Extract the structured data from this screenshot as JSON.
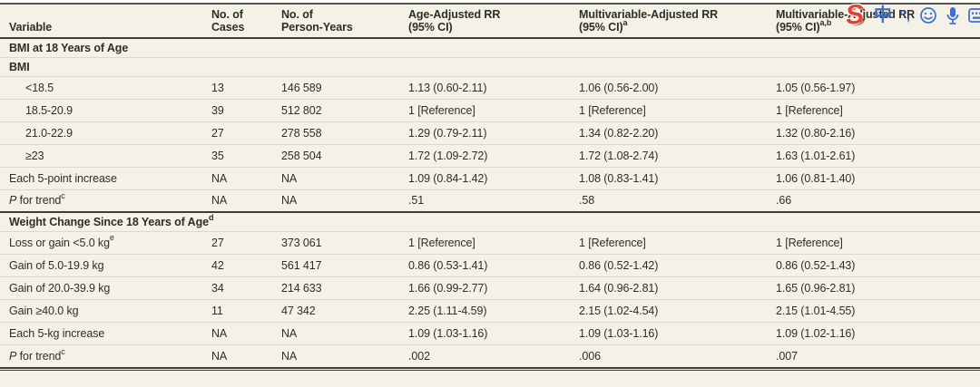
{
  "page": {
    "background": "#f4f2e7",
    "rule_color": "#3d3c36",
    "text_color": "#2e2d29"
  },
  "table": {
    "header": {
      "cols": [
        {
          "line1": "",
          "line2": "Variable",
          "sup": ""
        },
        {
          "line1": "No. of",
          "line2": "Cases",
          "sup": ""
        },
        {
          "line1": "No. of",
          "line2": "Person-Years",
          "sup": ""
        },
        {
          "line1": "Age-Adjusted RR",
          "line2": "(95% CI)",
          "sup": ""
        },
        {
          "line1": "Multivariable-Adjusted RR",
          "line2": "(95% CI)",
          "sup": "a"
        },
        {
          "line1": "Multivariable-Adjusted RR",
          "line2": "(95% CI)",
          "sup": "a,b"
        }
      ]
    },
    "rows": [
      {
        "type": "section",
        "label": "BMI at 18 Years of Age",
        "sup": ""
      },
      {
        "type": "subheader",
        "label": "BMI"
      },
      {
        "type": "data",
        "indent": true,
        "label": "<18.5",
        "sup": "",
        "italic_prefix": false,
        "cases": "13",
        "person_years": "146 589",
        "age_adjusted_rr": "1.13 (0.60-2.11)",
        "mv_adjusted_rr_a": "1.06 (0.56-2.00)",
        "mv_adjusted_rr_ab": "1.05 (0.56-1.97)"
      },
      {
        "type": "data",
        "indent": true,
        "label": "18.5-20.9",
        "sup": "",
        "italic_prefix": false,
        "cases": "39",
        "person_years": "512 802",
        "age_adjusted_rr": "1 [Reference]",
        "mv_adjusted_rr_a": "1 [Reference]",
        "mv_adjusted_rr_ab": "1 [Reference]"
      },
      {
        "type": "data",
        "indent": true,
        "label": "21.0-22.9",
        "sup": "",
        "italic_prefix": false,
        "cases": "27",
        "person_years": "278 558",
        "age_adjusted_rr": "1.29 (0.79-2.11)",
        "mv_adjusted_rr_a": "1.34 (0.82-2.20)",
        "mv_adjusted_rr_ab": "1.32 (0.80-2.16)"
      },
      {
        "type": "data",
        "indent": true,
        "label": "≥23",
        "sup": "",
        "italic_prefix": false,
        "cases": "35",
        "person_years": "258 504",
        "age_adjusted_rr": "1.72 (1.09-2.72)",
        "mv_adjusted_rr_a": "1.72 (1.08-2.74)",
        "mv_adjusted_rr_ab": "1.63 (1.01-2.61)"
      },
      {
        "type": "data",
        "indent": false,
        "label": "Each 5-point increase",
        "sup": "",
        "italic_prefix": false,
        "cases": "NA",
        "person_years": "NA",
        "age_adjusted_rr": "1.09 (0.84-1.42)",
        "mv_adjusted_rr_a": "1.08 (0.83-1.41)",
        "mv_adjusted_rr_ab": "1.06 (0.81-1.40)"
      },
      {
        "type": "data",
        "indent": false,
        "label": "P for trend",
        "sup": "c",
        "italic_prefix": true,
        "cases": "NA",
        "person_years": "NA",
        "age_adjusted_rr": ".51",
        "mv_adjusted_rr_a": ".58",
        "mv_adjusted_rr_ab": ".66"
      },
      {
        "type": "section",
        "label": "Weight Change Since 18 Years of Age",
        "sup": "d"
      },
      {
        "type": "data",
        "indent": false,
        "label": "Loss or gain <5.0 kg",
        "sup": "e",
        "italic_prefix": false,
        "cases": "27",
        "person_years": "373 061",
        "age_adjusted_rr": "1 [Reference]",
        "mv_adjusted_rr_a": "1 [Reference]",
        "mv_adjusted_rr_ab": "1 [Reference]"
      },
      {
        "type": "data",
        "indent": false,
        "label": "Gain of 5.0-19.9 kg",
        "sup": "",
        "italic_prefix": false,
        "cases": "42",
        "person_years": "561 417",
        "age_adjusted_rr": "0.86 (0.53-1.41)",
        "mv_adjusted_rr_a": "0.86 (0.52-1.42)",
        "mv_adjusted_rr_ab": "0.86 (0.52-1.43)"
      },
      {
        "type": "data",
        "indent": false,
        "label": "Gain of 20.0-39.9 kg",
        "sup": "",
        "italic_prefix": false,
        "cases": "34",
        "person_years": "214 633",
        "age_adjusted_rr": "1.66 (0.99-2.77)",
        "mv_adjusted_rr_a": "1.64 (0.96-2.81)",
        "mv_adjusted_rr_ab": "1.65 (0.96-2.81)"
      },
      {
        "type": "data",
        "indent": false,
        "label": "Gain ≥40.0 kg",
        "sup": "",
        "italic_prefix": false,
        "cases": "11",
        "person_years": "47 342",
        "age_adjusted_rr": "2.25 (1.11-4.59)",
        "mv_adjusted_rr_a": "2.15 (1.02-4.54)",
        "mv_adjusted_rr_ab": "2.15 (1.01-4.55)"
      },
      {
        "type": "data",
        "indent": false,
        "label": "Each 5-kg increase",
        "sup": "",
        "italic_prefix": false,
        "cases": "NA",
        "person_years": "NA",
        "age_adjusted_rr": "1.09 (1.03-1.16)",
        "mv_adjusted_rr_a": "1.09 (1.03-1.16)",
        "mv_adjusted_rr_ab": "1.09 (1.02-1.16)"
      },
      {
        "type": "data",
        "indent": false,
        "label": "P for trend",
        "sup": "c",
        "italic_prefix": true,
        "cases": "NA",
        "person_years": "NA",
        "age_adjusted_rr": ".002",
        "mv_adjusted_rr_a": ".006",
        "mv_adjusted_rr_ab": ".007"
      }
    ]
  },
  "ime_toolbar": {
    "logo_glyph": "S",
    "chinese_mode_glyph": "中",
    "punctuation_glyph": "°,",
    "logo_color": "#e8402a",
    "accent_color": "#3f6fce"
  }
}
